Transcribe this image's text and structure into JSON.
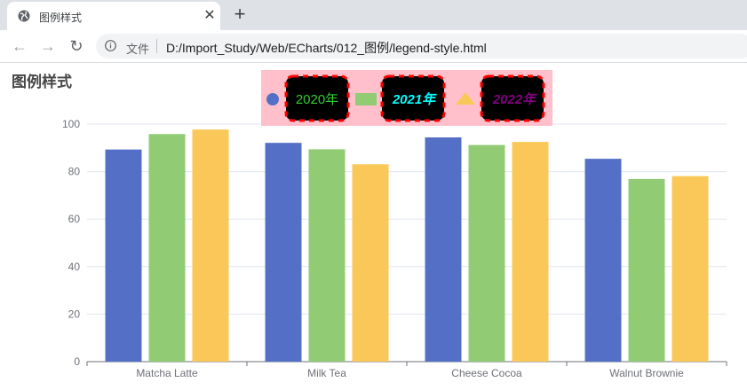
{
  "browser": {
    "tab_title": "图例样式",
    "tab_close_icon": "close-icon",
    "new_tab_icon": "plus-icon",
    "back_icon": "arrow-left-icon",
    "forward_icon": "arrow-right-icon",
    "reload_icon": "reload-icon",
    "url_prefix": "文件",
    "url": "D:/Import_Study/Web/ECharts/012_图例/legend-style.html"
  },
  "colors": {
    "series": [
      "#5470c6",
      "#91cc75",
      "#fac858"
    ],
    "legend_bg": "#ffc0cb",
    "legend_text": [
      "#32cd32",
      "#00ffff",
      "#800080"
    ],
    "legend_box_border": "#ff0000"
  },
  "chart_data": {
    "type": "bar",
    "title": "图例样式",
    "categories": [
      "Matcha Latte",
      "Milk Tea",
      "Cheese Cocoa",
      "Walnut Brownie"
    ],
    "series": [
      {
        "name": "2020年",
        "legend_icon": "circle",
        "values": [
          89.3,
          92.1,
          94.4,
          85.4
        ]
      },
      {
        "name": "2021年",
        "legend_icon": "rect",
        "values": [
          95.8,
          89.4,
          91.2,
          76.9
        ]
      },
      {
        "name": "2022年",
        "legend_icon": "triangle",
        "values": [
          97.7,
          83.1,
          92.5,
          78.1
        ]
      }
    ],
    "yticks": [
      "0",
      "20",
      "40",
      "60",
      "80",
      "100"
    ],
    "ylim": [
      0,
      100
    ],
    "grid": true,
    "legend_position": "top-center"
  }
}
